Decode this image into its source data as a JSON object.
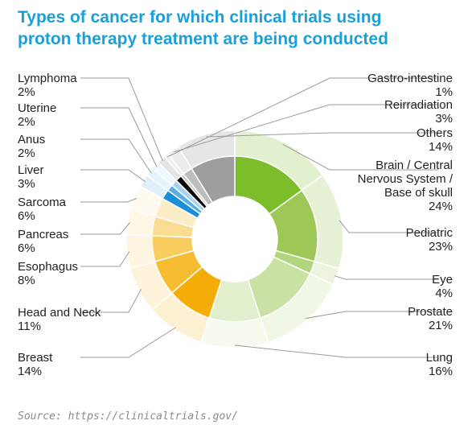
{
  "title_lines": [
    "Types of cancer for which clinical trials using",
    "proton therapy treatment are being conducted"
  ],
  "source": "Source: https://clinicaltrials.gov/",
  "chart_data": {
    "type": "pie",
    "style": "donut",
    "title": "Types of cancer for which clinical trials using proton therapy treatment are being conducted",
    "unit": "%",
    "slices": [
      {
        "name": "Brain / Central Nervous System / Base of skull",
        "lines": [
          "Brain / Central",
          "Nervous System /",
          "Base of skull"
        ],
        "value": 24,
        "label": "24%",
        "color": "#7cbd2b",
        "outer": "#e3f0cf",
        "side": "right"
      },
      {
        "name": "Pediatric",
        "lines": [
          "Pediatric"
        ],
        "value": 23,
        "label": "23%",
        "color": "#9dc858",
        "outer": "#e6f1d6",
        "side": "right"
      },
      {
        "name": "Eye",
        "lines": [
          "Eye"
        ],
        "value": 4,
        "label": "4%",
        "color": "#b4d57f",
        "outer": "#edf5e1",
        "side": "right"
      },
      {
        "name": "Prostate",
        "lines": [
          "Prostate"
        ],
        "value": 21,
        "label": "21%",
        "color": "#c9e1a3",
        "outer": "#f0f7e5",
        "side": "right"
      },
      {
        "name": "Lung",
        "lines": [
          "Lung"
        ],
        "value": 16,
        "label": "16%",
        "color": "#e2efcc",
        "outer": "#f5f9ee",
        "side": "right"
      },
      {
        "name": "Breast",
        "lines": [
          "Breast"
        ],
        "value": 14,
        "label": "14%",
        "color": "#f4ad06",
        "outer": "#fdf1d4",
        "side": "left"
      },
      {
        "name": "Head and Neck",
        "lines": [
          "Head and Neck"
        ],
        "value": 11,
        "label": "11%",
        "color": "#f6bd33",
        "outer": "#fdf2da",
        "side": "left"
      },
      {
        "name": "Esophagus",
        "lines": [
          "Esophagus"
        ],
        "value": 8,
        "label": "8%",
        "color": "#f8cc5e",
        "outer": "#fef5e0",
        "side": "left"
      },
      {
        "name": "Pancreas",
        "lines": [
          "Pancreas"
        ],
        "value": 6,
        "label": "6%",
        "color": "#fadd92",
        "outer": "#fef7e6",
        "side": "left"
      },
      {
        "name": "Sarcoma",
        "lines": [
          "Sarcoma"
        ],
        "value": 6,
        "label": "6%",
        "color": "#fcecc8",
        "outer": "#fffaf0",
        "side": "left"
      },
      {
        "name": "Liver",
        "lines": [
          "Liver"
        ],
        "value": 3,
        "label": "3%",
        "color": "#1a8ed6",
        "outer": "#dff0fb",
        "side": "left"
      },
      {
        "name": "Anus",
        "lines": [
          "Anus"
        ],
        "value": 2,
        "label": "2%",
        "color": "#58aee5",
        "outer": "#e5f3fc",
        "side": "left"
      },
      {
        "name": "Uterine",
        "lines": [
          "Uterine"
        ],
        "value": 2,
        "label": "2%",
        "color": "#a6d3f1",
        "outer": "#eef7fd",
        "side": "left"
      },
      {
        "name": "Lymphoma",
        "lines": [
          "Lymphoma"
        ],
        "value": 2,
        "label": "2%",
        "color": "#0a0a0a",
        "outer": "#e4e4e4",
        "side": "left"
      },
      {
        "name": "Gastro-intestine",
        "lines": [
          "Gastro-intestine"
        ],
        "value": 1,
        "label": "1%",
        "color": "#c9c9c9",
        "outer": "#eeeeee",
        "side": "right"
      },
      {
        "name": "Reirradiation",
        "lines": [
          "Reirradiation"
        ],
        "value": 3,
        "label": "3%",
        "color": "#bdbdbd",
        "outer": "#ececec",
        "side": "right"
      },
      {
        "name": "Others",
        "lines": [
          "Others"
        ],
        "value": 14,
        "label": "14%",
        "color": "#9e9e9e",
        "outer": "#e6e6e6",
        "side": "right"
      }
    ]
  }
}
